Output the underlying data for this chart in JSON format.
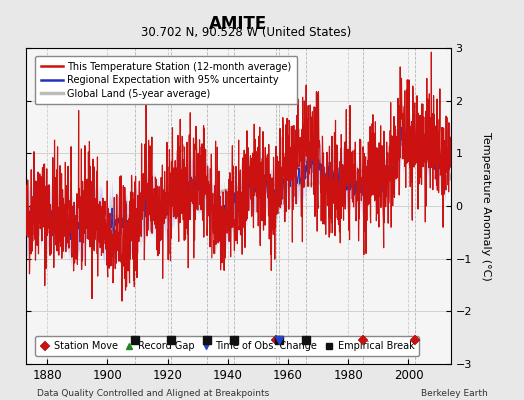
{
  "title": "AMITE",
  "subtitle": "30.702 N, 90.528 W (United States)",
  "xlabel_left": "Data Quality Controlled and Aligned at Breakpoints",
  "xlabel_right": "Berkeley Earth",
  "ylabel": "Temperature Anomaly (°C)",
  "xlim": [
    1873,
    2014
  ],
  "ylim": [
    -3,
    3
  ],
  "yticks": [
    -3,
    -2,
    -1,
    0,
    1,
    2,
    3
  ],
  "xticks": [
    1880,
    1900,
    1920,
    1940,
    1960,
    1980,
    2000
  ],
  "year_start": 1873,
  "year_end": 2013,
  "bg_color": "#e8e8e8",
  "plot_bg_color": "#f5f5f5",
  "station_move_years": [
    1956,
    1985,
    2002
  ],
  "empirical_break_years": [
    1909,
    1921,
    1933,
    1942,
    1957,
    1966
  ],
  "time_obs_years": [
    1957
  ],
  "record_gap_years": [],
  "marker_y": -2.55,
  "seed": 42
}
